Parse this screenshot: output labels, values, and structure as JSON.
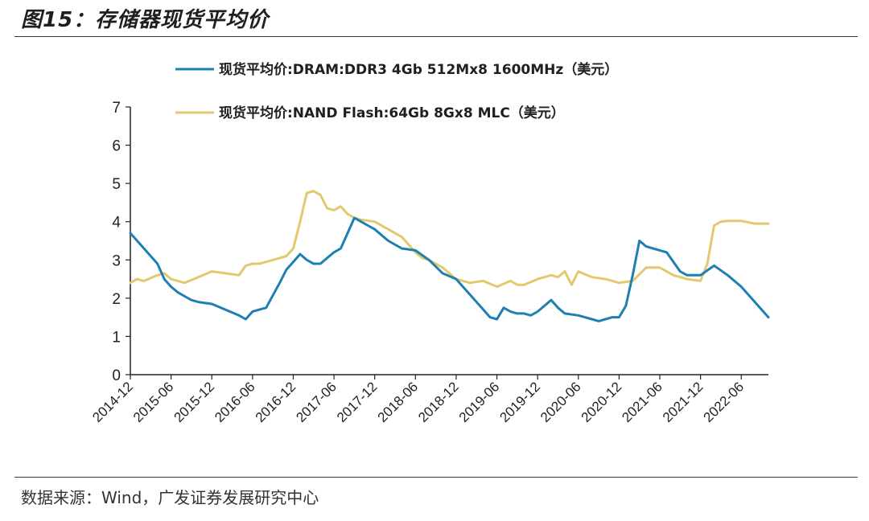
{
  "figure": {
    "title": "图15：存储器现货平均价",
    "source": "数据来源：Wind，广发证券发展研究中心"
  },
  "colors": {
    "dram": "#1f7fb3",
    "nand": "#e2c96e",
    "axis": "#222222"
  },
  "chart_data": {
    "type": "line",
    "title": "存储器现货平均价",
    "xlabel": "",
    "ylabel": "",
    "ylim": [
      0,
      7
    ],
    "yticks": [
      0,
      1,
      2,
      3,
      4,
      5,
      6,
      7
    ],
    "grid": false,
    "legend_position": "top",
    "x_tick_labels": [
      "2014-12",
      "2015-06",
      "2015-12",
      "2016-06",
      "2016-12",
      "2017-06",
      "2017-12",
      "2018-06",
      "2018-12",
      "2019-06",
      "2019-12",
      "2020-06",
      "2020-12",
      "2021-06",
      "2021-12",
      "2022-06"
    ],
    "x_range_months": [
      0,
      94
    ],
    "series": [
      {
        "name": "现货平均价:DRAM:DDR3 4Gb 512Mx8 1600MHz（美元）",
        "color_key": "dram",
        "x": [
          0,
          2,
          4,
          5,
          6,
          7,
          8,
          9,
          10,
          12,
          14,
          16,
          17,
          18,
          19,
          20,
          22,
          23,
          24,
          25,
          26,
          27,
          28,
          29,
          30,
          31,
          32,
          33,
          34,
          35,
          36,
          37,
          38,
          40,
          42,
          44,
          46,
          48,
          50,
          52,
          53,
          54,
          55,
          56,
          57,
          58,
          59,
          60,
          61,
          62,
          63,
          64,
          66,
          68,
          69,
          70,
          71,
          72,
          73,
          74,
          75,
          76,
          77,
          78,
          79,
          80,
          81,
          82,
          84,
          86,
          88,
          90,
          92,
          94
        ],
        "values": [
          3.7,
          3.3,
          2.9,
          2.5,
          2.3,
          2.15,
          2.05,
          1.95,
          1.9,
          1.85,
          1.7,
          1.55,
          1.45,
          1.65,
          1.7,
          1.75,
          2.4,
          2.75,
          2.95,
          3.15,
          3.0,
          2.9,
          2.9,
          3.05,
          3.2,
          3.3,
          3.7,
          4.1,
          4.0,
          3.9,
          3.8,
          3.65,
          3.5,
          3.3,
          3.25,
          3.0,
          2.65,
          2.5,
          2.1,
          1.7,
          1.5,
          1.45,
          1.75,
          1.65,
          1.6,
          1.6,
          1.55,
          1.65,
          1.8,
          1.95,
          1.75,
          1.6,
          1.55,
          1.45,
          1.4,
          1.45,
          1.5,
          1.5,
          1.8,
          2.6,
          3.5,
          3.35,
          3.3,
          3.25,
          3.2,
          2.95,
          2.7,
          2.6,
          2.6,
          2.85,
          2.6,
          2.3,
          1.9,
          1.5
        ]
      },
      {
        "name": "现货平均价:NAND Flash:64Gb 8Gx8 MLC（美元）",
        "color_key": "nand",
        "x": [
          0,
          1,
          2,
          4,
          5,
          6,
          8,
          10,
          12,
          14,
          16,
          17,
          18,
          19,
          20,
          22,
          23,
          24,
          25,
          26,
          27,
          28,
          29,
          30,
          31,
          32,
          33,
          34,
          36,
          38,
          40,
          41,
          42,
          43,
          44,
          45,
          46,
          48,
          50,
          52,
          54,
          56,
          57,
          58,
          60,
          62,
          63,
          64,
          65,
          66,
          68,
          70,
          72,
          74,
          76,
          78,
          80,
          82,
          84,
          85,
          86,
          87,
          88,
          90,
          92,
          94
        ],
        "values": [
          2.4,
          2.5,
          2.45,
          2.6,
          2.65,
          2.5,
          2.4,
          2.55,
          2.7,
          2.65,
          2.6,
          2.85,
          2.9,
          2.9,
          2.95,
          3.05,
          3.1,
          3.3,
          4.0,
          4.75,
          4.8,
          4.7,
          4.35,
          4.3,
          4.4,
          4.2,
          4.1,
          4.05,
          4.0,
          3.8,
          3.6,
          3.4,
          3.2,
          3.05,
          3.0,
          2.9,
          2.8,
          2.5,
          2.4,
          2.45,
          2.3,
          2.45,
          2.35,
          2.35,
          2.5,
          2.6,
          2.55,
          2.7,
          2.35,
          2.7,
          2.55,
          2.5,
          2.4,
          2.45,
          2.8,
          2.8,
          2.6,
          2.5,
          2.45,
          2.9,
          3.9,
          4.0,
          4.02,
          4.02,
          3.95,
          3.95
        ]
      }
    ]
  }
}
